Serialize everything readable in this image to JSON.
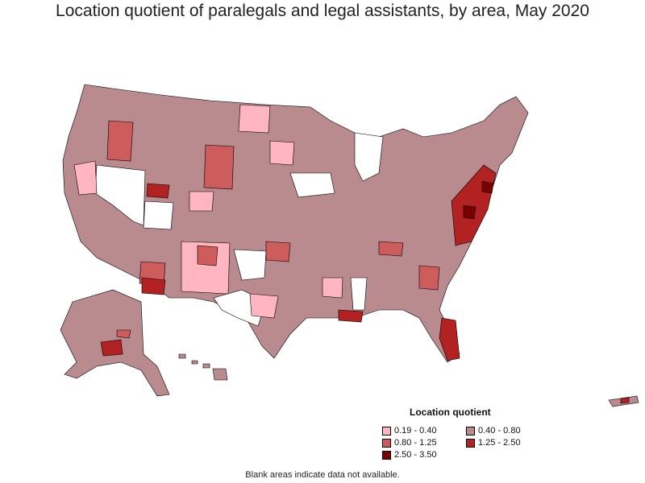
{
  "title": "Location quotient of paralegals and legal assistants, by area, May 2020",
  "legend": {
    "title": "Location quotient",
    "items": [
      {
        "label": "0.19 - 0.40",
        "color": "#ffb6c1"
      },
      {
        "label": "0.40 - 0.80",
        "color": "#b98a8e"
      },
      {
        "label": "0.80 - 1.25",
        "color": "#cd5c5c"
      },
      {
        "label": "1.25 - 2.50",
        "color": "#b22222"
      },
      {
        "label": "2.50 - 3.50",
        "color": "#7a0000"
      }
    ]
  },
  "footnote": "Blank areas indicate data not available.",
  "colors": {
    "no_data": "#ffffff",
    "border": "#000000"
  }
}
